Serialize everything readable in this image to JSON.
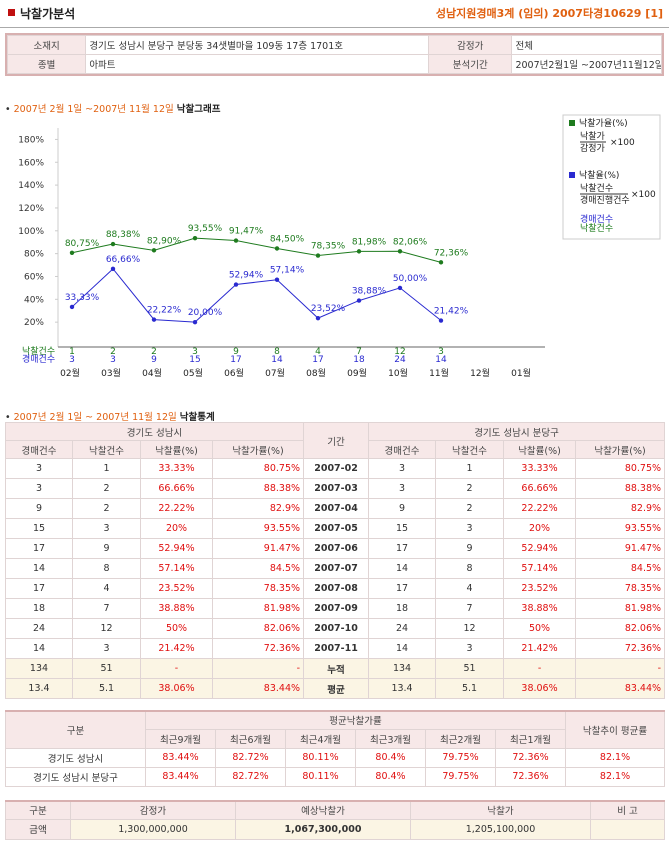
{
  "header": {
    "title": "낙찰가분석",
    "case": "성남지원경매3계 (임의) 2007타경10629 [1]"
  },
  "info": {
    "rows": [
      [
        "소재지",
        "경기도 성남시 분당구 분당동 34샛별마을 109동 17층 1701호",
        "감정가",
        "전체"
      ],
      [
        "종별",
        "아파트",
        "분석기간",
        "2007년2월1일 ~2007년11월12일"
      ]
    ]
  },
  "graph_heading": {
    "date": "2007년 2월 1일 ~2007년 11월 12일",
    "title": "낙찰그래프"
  },
  "chart_data": {
    "type": "line",
    "categories": [
      "02월",
      "03월",
      "04월",
      "05월",
      "06월",
      "07월",
      "08월",
      "09월",
      "10월",
      "11월",
      "12월",
      "01월"
    ],
    "ylim": [
      0,
      190
    ],
    "yticks": [
      {
        "value": 20,
        "label": "20%"
      },
      {
        "value": 40,
        "label": "40%"
      },
      {
        "value": 60,
        "label": "60%"
      },
      {
        "value": 80,
        "label": "80%"
      },
      {
        "value": 100,
        "label": "100%"
      },
      {
        "value": 120,
        "label": "120%"
      },
      {
        "value": 140,
        "label": "140%"
      },
      {
        "value": 160,
        "label": "160%"
      },
      {
        "value": 180,
        "label": "180%"
      }
    ],
    "series": [
      {
        "name": "낙찰가율(%)",
        "color": "#1e7b1e",
        "values": [
          80.75,
          88.38,
          82.9,
          93.55,
          91.47,
          84.5,
          78.35,
          81.98,
          82.06,
          72.36,
          null,
          null
        ],
        "value_labels": [
          "80,75%",
          "88,38%",
          "82,90%",
          "93,55%",
          "91,47%",
          "84,50%",
          "78,35%",
          "81,98%",
          "82,06%",
          "72,36%",
          null,
          null
        ]
      },
      {
        "name": "낙찰율(%)",
        "color": "#2a2ad0",
        "values": [
          33.33,
          66.66,
          22.22,
          20.0,
          52.94,
          57.14,
          23.52,
          38.88,
          50.0,
          21.42,
          null,
          null
        ],
        "value_labels": [
          "33,33%",
          "66,66%",
          "22,22%",
          "20,00%",
          "52,94%",
          "57,14%",
          "23,52%",
          "38,88%",
          "50,00%",
          "21,42%",
          null,
          null
        ]
      }
    ],
    "count_rows": [
      {
        "name": "낙찰건수",
        "color": "#1e7b1e",
        "values": [
          1,
          2,
          2,
          3,
          9,
          8,
          4,
          7,
          12,
          3,
          null,
          null
        ]
      },
      {
        "name": "경매건수",
        "color": "#2a2ad0",
        "values": [
          3,
          3,
          9,
          15,
          17,
          14,
          17,
          18,
          24,
          14,
          null,
          null
        ]
      }
    ],
    "legend": [
      {
        "name": "낙찰가율(%)",
        "numerator": "낙찰가",
        "denominator": "감정가",
        "multiplier": "×100"
      },
      {
        "name": "낙찰율(%)",
        "numerator": "낙찰건수",
        "denominator": "경매진행건수",
        "multiplier": "×100"
      }
    ],
    "legend_extra": [
      "경매건수",
      "낙찰건수"
    ]
  },
  "stats_heading": {
    "date": "2007년 2월 1일 ~ 2007년 11월 12일",
    "title": "낙찰통계"
  },
  "stats": {
    "group_left": "경기도 성남시",
    "period": "기간",
    "group_right": "경기도 성남시 분당구",
    "columns": [
      "경매건수",
      "낙찰건수",
      "낙찰률(%)",
      "낙찰가률(%)"
    ],
    "rows": [
      [
        "3",
        "1",
        "33.33%",
        "80.75%",
        "2007-02",
        "3",
        "1",
        "33.33%",
        "80.75%"
      ],
      [
        "3",
        "2",
        "66.66%",
        "88.38%",
        "2007-03",
        "3",
        "2",
        "66.66%",
        "88.38%"
      ],
      [
        "9",
        "2",
        "22.22%",
        "82.9%",
        "2007-04",
        "9",
        "2",
        "22.22%",
        "82.9%"
      ],
      [
        "15",
        "3",
        "20%",
        "93.55%",
        "2007-05",
        "15",
        "3",
        "20%",
        "93.55%"
      ],
      [
        "17",
        "9",
        "52.94%",
        "91.47%",
        "2007-06",
        "17",
        "9",
        "52.94%",
        "91.47%"
      ],
      [
        "14",
        "8",
        "57.14%",
        "84.5%",
        "2007-07",
        "14",
        "8",
        "57.14%",
        "84.5%"
      ],
      [
        "17",
        "4",
        "23.52%",
        "78.35%",
        "2007-08",
        "17",
        "4",
        "23.52%",
        "78.35%"
      ],
      [
        "18",
        "7",
        "38.88%",
        "81.98%",
        "2007-09",
        "18",
        "7",
        "38.88%",
        "81.98%"
      ],
      [
        "24",
        "12",
        "50%",
        "82.06%",
        "2007-10",
        "24",
        "12",
        "50%",
        "82.06%"
      ],
      [
        "14",
        "3",
        "21.42%",
        "72.36%",
        "2007-11",
        "14",
        "3",
        "21.42%",
        "72.36%"
      ],
      [
        "134",
        "51",
        "-",
        "-",
        "누적",
        "134",
        "51",
        "-",
        "-"
      ],
      [
        "13.4",
        "5.1",
        "38.06%",
        "83.44%",
        "평균",
        "13.4",
        "5.1",
        "38.06%",
        "83.44%"
      ]
    ]
  },
  "averages": {
    "label": "구분",
    "group": "평균낙찰가률",
    "trend": "낙찰추이 평균률",
    "columns": [
      "최근9개월",
      "최근6개월",
      "최근4개월",
      "최근3개월",
      "최근2개월",
      "최근1개월"
    ],
    "rows": [
      [
        "경기도 성남시",
        "83.44%",
        "82.72%",
        "80.11%",
        "80.4%",
        "79.75%",
        "72.36%",
        "82.1%"
      ],
      [
        "경기도 성남시 분당구",
        "83.44%",
        "82.72%",
        "80.11%",
        "80.4%",
        "79.75%",
        "72.36%",
        "82.1%"
      ]
    ]
  },
  "price": {
    "columns": [
      "구분",
      "감정가",
      "예상낙찰가",
      "낙찰가",
      "비 고"
    ],
    "row": [
      "금액",
      "1,300,000,000",
      "1,067,300,000",
      "1,205,100,000"
    ]
  }
}
